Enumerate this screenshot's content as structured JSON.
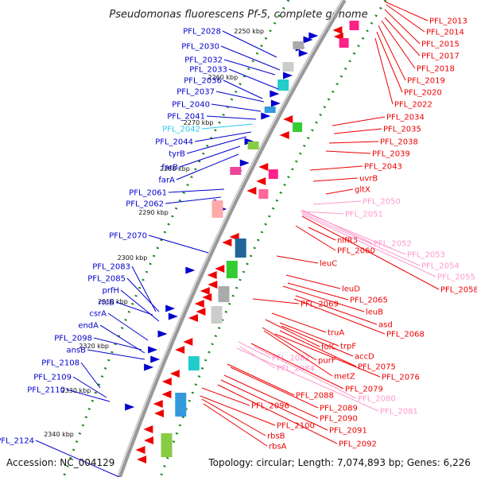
{
  "title": "Pseudomonas fluorescens Pf-5, complete genome",
  "footer": {
    "accession": "Accession: NC_004129",
    "summary": "Topology: circular; Length: 7,074,893 bp; Genes: 6,226"
  },
  "colors": {
    "forward_strand": "#0000cc",
    "reverse_strand": "#ee0000",
    "highlight_forward": "#22ccee",
    "highlight_reverse": "#ff99cc",
    "backbone": "#999999",
    "scale_dots": "#228822"
  },
  "scale_ticks": [
    "2250 kbp",
    "2260 kbp",
    "2270 kbp",
    "2280 kbp",
    "2290 kbp",
    "2300 kbp",
    "2310 kbp",
    "2320 kbp",
    "2330 kbp",
    "2340 kbp"
  ],
  "left_labels": [
    {
      "text": "PFL_2028",
      "style": "forward"
    },
    {
      "text": "PFL_2030",
      "style": "forward"
    },
    {
      "text": "PFL_2032",
      "style": "forward"
    },
    {
      "text": "PFL_2033",
      "style": "forward"
    },
    {
      "text": "PFL_2036",
      "style": "forward"
    },
    {
      "text": "PFL_2037",
      "style": "forward"
    },
    {
      "text": "PFL_2040",
      "style": "forward"
    },
    {
      "text": "PFL_2041",
      "style": "forward"
    },
    {
      "text": "PFL_2042",
      "style": "highlight_forward"
    },
    {
      "text": "PFL_2044",
      "style": "forward"
    },
    {
      "text": "tyrB",
      "style": "forward"
    },
    {
      "text": "farB",
      "style": "forward"
    },
    {
      "text": "farA",
      "style": "forward"
    },
    {
      "text": "PFL_2061",
      "style": "forward"
    },
    {
      "text": "PFL_2062",
      "style": "forward"
    },
    {
      "text": "PFL_2070",
      "style": "forward"
    },
    {
      "text": "PFL_2083",
      "style": "forward"
    },
    {
      "text": "PFL_2085",
      "style": "forward"
    },
    {
      "text": "prfH",
      "style": "forward"
    },
    {
      "text": "rtcB",
      "style": "forward"
    },
    {
      "text": "csrA",
      "style": "forward"
    },
    {
      "text": "endA",
      "style": "forward"
    },
    {
      "text": "PFL_2098",
      "style": "forward"
    },
    {
      "text": "ansB",
      "style": "forward"
    },
    {
      "text": "PFL_2108",
      "style": "forward"
    },
    {
      "text": "PFL_2109",
      "style": "forward"
    },
    {
      "text": "PFL_2110",
      "style": "forward"
    },
    {
      "text": "PFL_2124",
      "style": "forward"
    }
  ],
  "right_labels": [
    {
      "text": "PFL_2013",
      "style": "reverse"
    },
    {
      "text": "PFL_2014",
      "style": "reverse"
    },
    {
      "text": "PFL_2015",
      "style": "reverse"
    },
    {
      "text": "PFL_2017",
      "style": "reverse"
    },
    {
      "text": "PFL_2018",
      "style": "reverse"
    },
    {
      "text": "PFL_2019",
      "style": "reverse"
    },
    {
      "text": "PFL_2020",
      "style": "reverse"
    },
    {
      "text": "PFL_2022",
      "style": "reverse"
    },
    {
      "text": "PFL_2034",
      "style": "reverse"
    },
    {
      "text": "PFL_2035",
      "style": "reverse"
    },
    {
      "text": "PFL_2038",
      "style": "reverse"
    },
    {
      "text": "PFL_2039",
      "style": "reverse"
    },
    {
      "text": "PFL_2043",
      "style": "reverse"
    },
    {
      "text": "uvrB",
      "style": "reverse"
    },
    {
      "text": "gltX",
      "style": "reverse"
    },
    {
      "text": "PFL_2050",
      "style": "highlight_reverse"
    },
    {
      "text": "PFL_2051",
      "style": "highlight_reverse"
    },
    {
      "text": "nifR3",
      "style": "reverse"
    },
    {
      "text": "PFL_2060",
      "style": "reverse"
    },
    {
      "text": "PFL_2052",
      "style": "highlight_reverse"
    },
    {
      "text": "PFL_2053",
      "style": "highlight_reverse"
    },
    {
      "text": "PFL_2054",
      "style": "highlight_reverse"
    },
    {
      "text": "PFL_2055",
      "style": "highlight_reverse"
    },
    {
      "text": "PFL_2058",
      "style": "reverse"
    },
    {
      "text": "leuC",
      "style": "reverse"
    },
    {
      "text": "leuD",
      "style": "reverse"
    },
    {
      "text": "PFL_2065",
      "style": "reverse"
    },
    {
      "text": "leuB",
      "style": "reverse"
    },
    {
      "text": "PFL_2069",
      "style": "reverse"
    },
    {
      "text": "asd",
      "style": "reverse"
    },
    {
      "text": "PFL_2068",
      "style": "reverse"
    },
    {
      "text": "truA",
      "style": "reverse"
    },
    {
      "text": "folC",
      "style": "reverse"
    },
    {
      "text": "trpF",
      "style": "reverse"
    },
    {
      "text": "accD",
      "style": "reverse"
    },
    {
      "text": "PFL_2082",
      "style": "highlight_reverse"
    },
    {
      "text": "purF",
      "style": "reverse"
    },
    {
      "text": "PFL_2075",
      "style": "reverse"
    },
    {
      "text": "PFL_2084",
      "style": "highlight_reverse"
    },
    {
      "text": "metZ",
      "style": "reverse"
    },
    {
      "text": "PFL_2076",
      "style": "reverse"
    },
    {
      "text": "PFL_2079",
      "style": "reverse"
    },
    {
      "text": "PFL_2088",
      "style": "reverse"
    },
    {
      "text": "PFL_2080",
      "style": "highlight_reverse"
    },
    {
      "text": "PFL_2096",
      "style": "reverse"
    },
    {
      "text": "PFL_2089",
      "style": "reverse"
    },
    {
      "text": "PFL_2081",
      "style": "highlight_reverse"
    },
    {
      "text": "PFL_2090",
      "style": "reverse"
    },
    {
      "text": "PFL_2100",
      "style": "reverse"
    },
    {
      "text": "PFL_2091",
      "style": "reverse"
    },
    {
      "text": "rbsB",
      "style": "reverse"
    },
    {
      "text": "PFL_2092",
      "style": "reverse"
    },
    {
      "text": "rbsA",
      "style": "reverse"
    }
  ]
}
